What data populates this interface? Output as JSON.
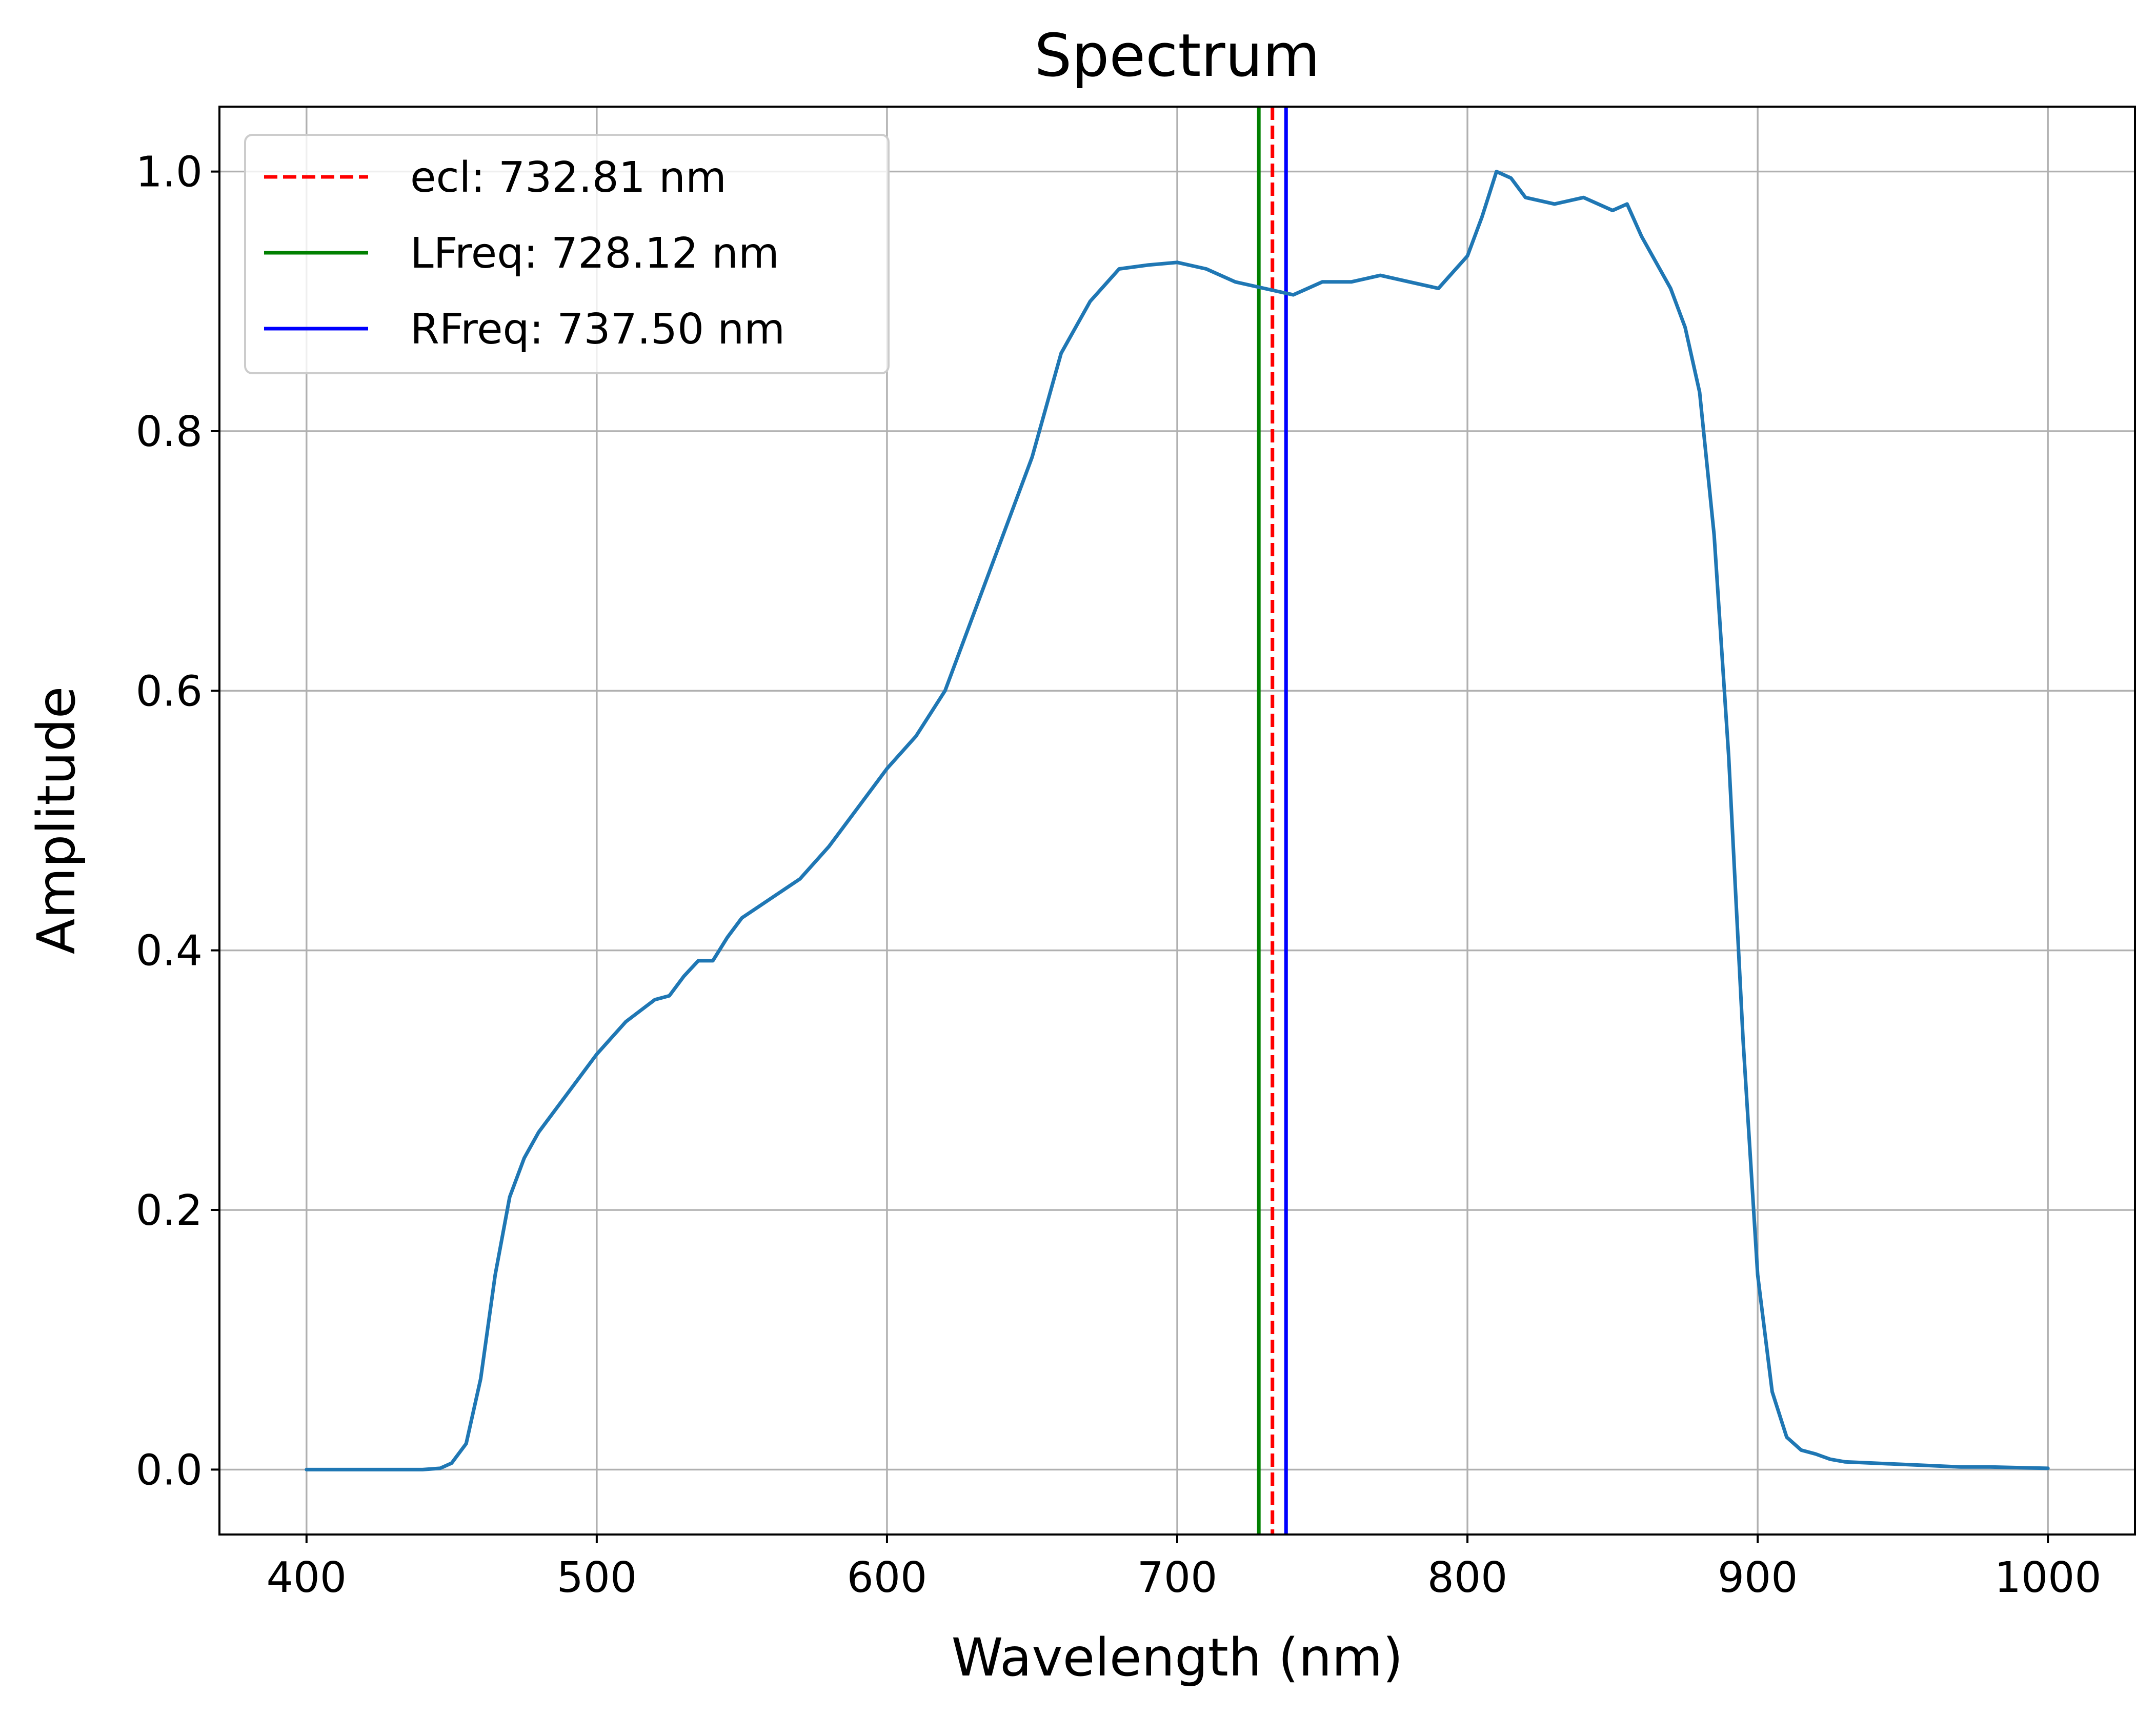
{
  "chart_data": {
    "type": "line",
    "title": "Spectrum",
    "xlabel": "Wavelength (nm)",
    "ylabel": "Amplitude",
    "xlim": [
      370,
      1030
    ],
    "ylim": [
      -0.05,
      1.05
    ],
    "xticks": [
      400,
      500,
      600,
      700,
      800,
      900,
      1000
    ],
    "xtick_labels": [
      "400",
      "500",
      "600",
      "700",
      "800",
      "900",
      "1000"
    ],
    "yticks": [
      0.0,
      0.2,
      0.4,
      0.6,
      0.8,
      1.0
    ],
    "ytick_labels": [
      "0.0",
      "0.2",
      "0.4",
      "0.6",
      "0.8",
      "1.0"
    ],
    "grid": true,
    "legend_position": "top-left",
    "series": [
      {
        "color": "#1f77b4",
        "x": [
          400,
          420,
          440,
          446,
          450,
          455,
          460,
          465,
          470,
          475,
          480,
          490,
          500,
          510,
          520,
          525,
          530,
          535,
          540,
          545,
          550,
          560,
          570,
          580,
          590,
          600,
          610,
          620,
          630,
          640,
          650,
          660,
          670,
          680,
          690,
          700,
          710,
          720,
          730,
          740,
          745,
          750,
          760,
          770,
          780,
          790,
          800,
          805,
          810,
          815,
          820,
          830,
          840,
          850,
          855,
          860,
          870,
          875,
          880,
          885,
          890,
          895,
          900,
          905,
          910,
          915,
          920,
          925,
          930,
          940,
          950,
          960,
          970,
          980,
          1000
        ],
        "y": [
          0.0,
          0.0,
          0.0,
          0.001,
          0.005,
          0.02,
          0.07,
          0.15,
          0.21,
          0.24,
          0.26,
          0.29,
          0.32,
          0.345,
          0.362,
          0.365,
          0.38,
          0.392,
          0.392,
          0.41,
          0.425,
          0.44,
          0.455,
          0.48,
          0.51,
          0.54,
          0.565,
          0.6,
          0.66,
          0.72,
          0.78,
          0.86,
          0.9,
          0.925,
          0.928,
          0.93,
          0.925,
          0.915,
          0.91,
          0.905,
          0.91,
          0.915,
          0.915,
          0.92,
          0.915,
          0.91,
          0.935,
          0.965,
          1.0,
          0.995,
          0.98,
          0.975,
          0.98,
          0.97,
          0.975,
          0.95,
          0.91,
          0.88,
          0.83,
          0.72,
          0.55,
          0.33,
          0.15,
          0.06,
          0.025,
          0.015,
          0.012,
          0.008,
          0.006,
          0.005,
          0.004,
          0.003,
          0.002,
          0.002,
          0.001
        ]
      }
    ],
    "vlines": [
      {
        "label": "ecl: 732.81 nm",
        "x": 732.81,
        "color": "#ff0000",
        "style": "dashed"
      },
      {
        "label": "LFreq: 728.12 nm",
        "x": 728.12,
        "color": "#008000",
        "style": "solid"
      },
      {
        "label": "RFreq: 737.50 nm",
        "x": 737.5,
        "color": "#0000ff",
        "style": "solid"
      }
    ]
  }
}
